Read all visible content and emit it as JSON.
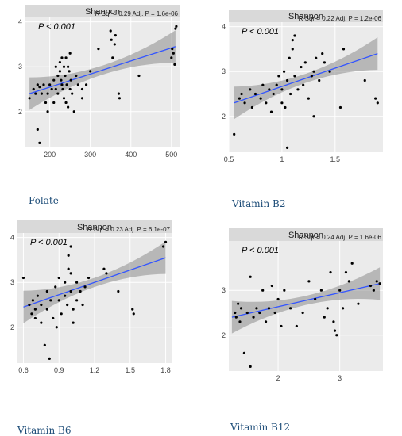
{
  "captions": [
    "Folate",
    "Vitamin B2",
    "Vitamin B6",
    "Vitamin B12"
  ],
  "chart_data": [
    {
      "type": "scatter",
      "title": "Shannon",
      "p_text": "P < 0.001",
      "stats_text": "R Sqr = 0.29    Adj. P = 1.6e-06",
      "xlim": [
        140,
        520
      ],
      "ylim": [
        1.2,
        4.1
      ],
      "xticks": [
        200,
        300,
        400,
        500
      ],
      "yticks": [
        2,
        3,
        4
      ],
      "trend": {
        "x": [
          150,
          510
        ],
        "y": [
          2.4,
          3.45
        ]
      },
      "points": [
        [
          150,
          2.3
        ],
        [
          160,
          2.5
        ],
        [
          165,
          2.4
        ],
        [
          170,
          2.6
        ],
        [
          175,
          2.55
        ],
        [
          170,
          1.6
        ],
        [
          175,
          1.3
        ],
        [
          180,
          2.4
        ],
        [
          185,
          2.6
        ],
        [
          190,
          2.2
        ],
        [
          195,
          2.4
        ],
        [
          195,
          2.0
        ],
        [
          200,
          2.6
        ],
        [
          205,
          2.5
        ],
        [
          210,
          2.7
        ],
        [
          210,
          2.2
        ],
        [
          215,
          2.5
        ],
        [
          215,
          3.0
        ],
        [
          220,
          2.8
        ],
        [
          220,
          2.4
        ],
        [
          225,
          2.9
        ],
        [
          225,
          3.1
        ],
        [
          228,
          2.7
        ],
        [
          230,
          2.6
        ],
        [
          230,
          3.2
        ],
        [
          232,
          2.5
        ],
        [
          235,
          3.0
        ],
        [
          235,
          2.3
        ],
        [
          238,
          2.8
        ],
        [
          240,
          3.2
        ],
        [
          240,
          2.2
        ],
        [
          242,
          2.6
        ],
        [
          245,
          3.0
        ],
        [
          245,
          2.1
        ],
        [
          248,
          2.9
        ],
        [
          250,
          2.5
        ],
        [
          250,
          3.3
        ],
        [
          252,
          2.7
        ],
        [
          255,
          2.4
        ],
        [
          260,
          2.0
        ],
        [
          265,
          2.8
        ],
        [
          270,
          2.6
        ],
        [
          280,
          2.5
        ],
        [
          280,
          2.3
        ],
        [
          290,
          2.6
        ],
        [
          300,
          2.9
        ],
        [
          320,
          3.4
        ],
        [
          350,
          3.8
        ],
        [
          352,
          3.6
        ],
        [
          355,
          3.2
        ],
        [
          360,
          3.5
        ],
        [
          362,
          3.7
        ],
        [
          370,
          2.4
        ],
        [
          372,
          2.3
        ],
        [
          420,
          2.8
        ],
        [
          500,
          3.2
        ],
        [
          502,
          3.4
        ],
        [
          505,
          3.3
        ],
        [
          508,
          3.05
        ],
        [
          510,
          3.85
        ],
        [
          512,
          3.9
        ]
      ]
    },
    {
      "type": "scatter",
      "title": "Shannon",
      "p_text": "P < 0.001",
      "stats_text": "R Sqr = 0.22    Adj. P = 1.2e-06",
      "xlim": [
        0.5,
        1.95
      ],
      "ylim": [
        1.2,
        4.1
      ],
      "xticks": [
        0.5,
        1.0,
        1.5
      ],
      "yticks": [
        2,
        3,
        4
      ],
      "trend": {
        "x": [
          0.55,
          1.9
        ],
        "y": [
          2.3,
          3.4
        ]
      },
      "points": [
        [
          0.55,
          1.6
        ],
        [
          0.6,
          2.4
        ],
        [
          0.62,
          2.5
        ],
        [
          0.65,
          2.3
        ],
        [
          0.7,
          2.6
        ],
        [
          0.72,
          2.2
        ],
        [
          0.75,
          2.5
        ],
        [
          0.8,
          2.4
        ],
        [
          0.82,
          2.7
        ],
        [
          0.85,
          2.3
        ],
        [
          0.88,
          2.6
        ],
        [
          0.9,
          2.1
        ],
        [
          0.92,
          2.5
        ],
        [
          0.95,
          2.7
        ],
        [
          0.97,
          2.9
        ],
        [
          1.0,
          2.6
        ],
        [
          1.0,
          2.3
        ],
        [
          1.02,
          3.0
        ],
        [
          1.03,
          2.2
        ],
        [
          1.05,
          2.8
        ],
        [
          1.05,
          1.3
        ],
        [
          1.07,
          3.3
        ],
        [
          1.08,
          2.5
        ],
        [
          1.1,
          3.5
        ],
        [
          1.1,
          3.7
        ],
        [
          1.12,
          2.9
        ],
        [
          1.12,
          3.8
        ],
        [
          1.15,
          2.6
        ],
        [
          1.18,
          3.1
        ],
        [
          1.2,
          2.7
        ],
        [
          1.22,
          3.2
        ],
        [
          1.25,
          2.4
        ],
        [
          1.28,
          2.9
        ],
        [
          1.3,
          2.0
        ],
        [
          1.3,
          3.0
        ],
        [
          1.32,
          3.3
        ],
        [
          1.35,
          2.8
        ],
        [
          1.38,
          3.4
        ],
        [
          1.4,
          3.2
        ],
        [
          1.45,
          3.0
        ],
        [
          1.55,
          2.2
        ],
        [
          1.58,
          3.5
        ],
        [
          1.78,
          2.8
        ],
        [
          1.88,
          2.4
        ],
        [
          1.9,
          2.3
        ]
      ]
    },
    {
      "type": "scatter",
      "title": "Shannon",
      "p_text": "P < 0.001",
      "stats_text": "R Sqr = 0.23    Adj. P = 6.1e-07",
      "xlim": [
        0.55,
        1.85
      ],
      "ylim": [
        1.2,
        4.1
      ],
      "xticks": [
        0.6,
        0.9,
        1.2,
        1.5,
        1.8
      ],
      "yticks": [
        2,
        3,
        4
      ],
      "trend": {
        "x": [
          0.6,
          1.8
        ],
        "y": [
          2.45,
          3.55
        ]
      },
      "points": [
        [
          0.6,
          3.1
        ],
        [
          0.65,
          2.5
        ],
        [
          0.67,
          2.3
        ],
        [
          0.68,
          2.6
        ],
        [
          0.7,
          2.4
        ],
        [
          0.7,
          2.2
        ],
        [
          0.72,
          2.7
        ],
        [
          0.75,
          2.5
        ],
        [
          0.75,
          2.1
        ],
        [
          0.78,
          1.6
        ],
        [
          0.8,
          2.4
        ],
        [
          0.8,
          2.8
        ],
        [
          0.82,
          1.3
        ],
        [
          0.83,
          2.6
        ],
        [
          0.85,
          2.2
        ],
        [
          0.87,
          2.9
        ],
        [
          0.88,
          2.0
        ],
        [
          0.9,
          2.6
        ],
        [
          0.9,
          3.1
        ],
        [
          0.92,
          2.3
        ],
        [
          0.95,
          2.7
        ],
        [
          0.95,
          3.0
        ],
        [
          0.97,
          2.5
        ],
        [
          0.98,
          3.3
        ],
        [
          0.98,
          3.6
        ],
        [
          1.0,
          2.8
        ],
        [
          1.0,
          3.2
        ],
        [
          1.0,
          3.8
        ],
        [
          1.02,
          2.4
        ],
        [
          1.02,
          2.1
        ],
        [
          1.05,
          2.6
        ],
        [
          1.05,
          3.0
        ],
        [
          1.08,
          2.8
        ],
        [
          1.1,
          2.5
        ],
        [
          1.12,
          2.9
        ],
        [
          1.15,
          3.1
        ],
        [
          1.28,
          3.3
        ],
        [
          1.3,
          3.2
        ],
        [
          1.4,
          2.8
        ],
        [
          1.52,
          2.4
        ],
        [
          1.53,
          2.3
        ],
        [
          1.78,
          3.8
        ],
        [
          1.8,
          3.9
        ]
      ]
    },
    {
      "type": "scatter",
      "title": "Shannon",
      "p_text": "P < 0.001",
      "stats_text": "R Sqr = 0.24    Adj. P = 1.6e-06",
      "xlim": [
        1.2,
        3.7
      ],
      "ylim": [
        1.2,
        4.1
      ],
      "xticks": [
        2,
        3
      ],
      "yticks": [
        2,
        3
      ],
      "trend": {
        "x": [
          1.25,
          3.65
        ],
        "y": [
          2.4,
          3.15
        ]
      },
      "points": [
        [
          1.3,
          2.5
        ],
        [
          1.32,
          2.4
        ],
        [
          1.35,
          2.7
        ],
        [
          1.38,
          2.3
        ],
        [
          1.4,
          2.6
        ],
        [
          1.45,
          1.6
        ],
        [
          1.5,
          2.5
        ],
        [
          1.55,
          3.3
        ],
        [
          1.55,
          1.3
        ],
        [
          1.6,
          2.4
        ],
        [
          1.65,
          2.6
        ],
        [
          1.7,
          2.5
        ],
        [
          1.75,
          3.0
        ],
        [
          1.8,
          2.3
        ],
        [
          1.85,
          2.6
        ],
        [
          1.9,
          3.1
        ],
        [
          1.95,
          2.5
        ],
        [
          2.0,
          2.8
        ],
        [
          2.05,
          2.2
        ],
        [
          2.1,
          3.0
        ],
        [
          2.2,
          2.6
        ],
        [
          2.3,
          2.2
        ],
        [
          2.4,
          2.5
        ],
        [
          2.5,
          3.2
        ],
        [
          2.6,
          2.8
        ],
        [
          2.7,
          3.0
        ],
        [
          2.75,
          2.4
        ],
        [
          2.8,
          2.6
        ],
        [
          2.85,
          3.4
        ],
        [
          2.9,
          2.3
        ],
        [
          2.92,
          2.1
        ],
        [
          2.95,
          2.0
        ],
        [
          3.0,
          3.0
        ],
        [
          3.05,
          2.6
        ],
        [
          3.1,
          3.4
        ],
        [
          3.15,
          3.2
        ],
        [
          3.2,
          3.6
        ],
        [
          3.3,
          2.7
        ],
        [
          3.5,
          3.1
        ],
        [
          3.55,
          3.0
        ],
        [
          3.6,
          3.2
        ],
        [
          3.65,
          3.15
        ]
      ]
    }
  ]
}
